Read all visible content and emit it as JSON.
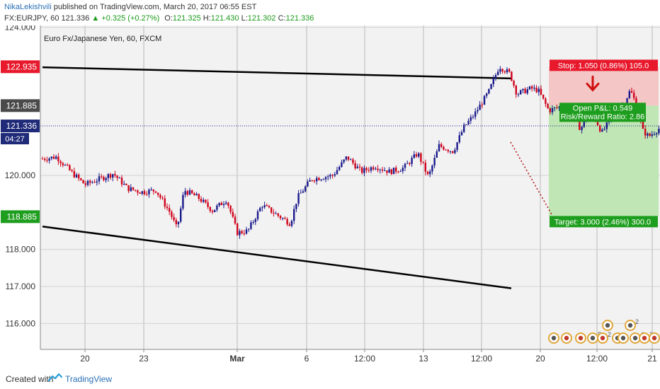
{
  "header": {
    "author": "NikaLekishvili",
    "published_text": "published on TradingView.com, March 20, 2017 06:55 EST",
    "symbol": "FX:EURJPY, 60",
    "last": "121.336",
    "change": "▲ +0.325 (+0.27%)",
    "o_label": "O:",
    "o_value": "121.325",
    "h_label": "H:",
    "h_value": "121.430",
    "l_label": "L:",
    "l_value": "121.302",
    "c_label": "C:",
    "c_value": "121.336"
  },
  "footer": {
    "created_with": "Created with",
    "brand": "TradingView"
  },
  "colors": {
    "up_candle": "#1a1a8c",
    "down_candle": "#d0021b",
    "stop_zone": "#f5c6c6",
    "target_zone": "#bfe6b4",
    "stop_label": "#e8192c",
    "target_label": "#1e9e1e",
    "price_line": "#1a1a8c",
    "trend_line": "#000000"
  },
  "chart_data": {
    "type": "candlestick",
    "title": "Euro Fx/Japanese Yen, 60, FXCM",
    "ylim": [
      115.3,
      124.05
    ],
    "y_ticks": [
      116.0,
      117.0,
      118.0,
      120.0,
      124.0
    ],
    "y_tick_labels": [
      "116.000",
      "117.000",
      "118.000",
      "120.000",
      "124.000"
    ],
    "x_tick_labels": [
      "20",
      "23",
      "Mar",
      "6",
      "12:00",
      "13",
      "12:00",
      "20",
      "12:00",
      "21"
    ],
    "grid": true,
    "price_path": [
      [
        0,
        120.45
      ],
      [
        20,
        120.5
      ],
      [
        40,
        120.1
      ],
      [
        60,
        119.75
      ],
      [
        80,
        119.9
      ],
      [
        100,
        120.05
      ],
      [
        120,
        119.65
      ],
      [
        140,
        119.55
      ],
      [
        160,
        119.6
      ],
      [
        180,
        119.0
      ],
      [
        190,
        118.55
      ],
      [
        200,
        119.6
      ],
      [
        220,
        119.4
      ],
      [
        240,
        119.05
      ],
      [
        260,
        119.35
      ],
      [
        275,
        118.45
      ],
      [
        290,
        118.5
      ],
      [
        310,
        119.2
      ],
      [
        330,
        118.95
      ],
      [
        350,
        118.7
      ],
      [
        360,
        119.4
      ],
      [
        380,
        119.9
      ],
      [
        410,
        120.0
      ],
      [
        430,
        120.5
      ],
      [
        450,
        120.1
      ],
      [
        470,
        120.25
      ],
      [
        490,
        120.1
      ],
      [
        510,
        120.2
      ],
      [
        530,
        120.6
      ],
      [
        545,
        119.95
      ],
      [
        560,
        120.8
      ],
      [
        580,
        120.65
      ],
      [
        595,
        121.3
      ],
      [
        610,
        121.65
      ],
      [
        630,
        122.25
      ],
      [
        645,
        122.95
      ],
      [
        660,
        122.75
      ],
      [
        670,
        122.2
      ],
      [
        690,
        122.35
      ],
      [
        700,
        122.3
      ],
      [
        715,
        121.75
      ],
      [
        730,
        121.85
      ],
      [
        745,
        121.75
      ],
      [
        760,
        121.25
      ],
      [
        770,
        121.65
      ],
      [
        780,
        121.55
      ],
      [
        790,
        121.15
      ],
      [
        800,
        121.45
      ],
      [
        820,
        121.9
      ],
      [
        830,
        122.3
      ],
      [
        840,
        121.85
      ],
      [
        848,
        121.2
      ],
      [
        856,
        121.05
      ],
      [
        866,
        121.2
      ],
      [
        876,
        121.34
      ]
    ],
    "current_price": 121.336,
    "current_price_label": "121.336",
    "countdown_label": "04:27",
    "stop_price": 122.935,
    "stop_price_label": "122.935",
    "entry_price": 121.885,
    "entry_price_label": "121.885",
    "target_price": 118.885,
    "target_price_label": "118.885",
    "trend_lines": [
      {
        "x1": 60,
        "y1": 122.92,
        "x2": 722,
        "y2": 122.62
      },
      {
        "x1": 60,
        "y1": 118.62,
        "x2": 722,
        "y2": 116.95
      }
    ],
    "position": {
      "stop_text": "Stop: 1.050 (0.86%) 105.0",
      "pnl_text": "Open P&L: 0.549",
      "rr_text": "Risk/Reward Ratio: 2.86",
      "target_text": "Target: 3.000 (2.46%) 300.0"
    },
    "event_icon_labels": [
      "2",
      "5",
      "2",
      "4",
      "2"
    ]
  }
}
